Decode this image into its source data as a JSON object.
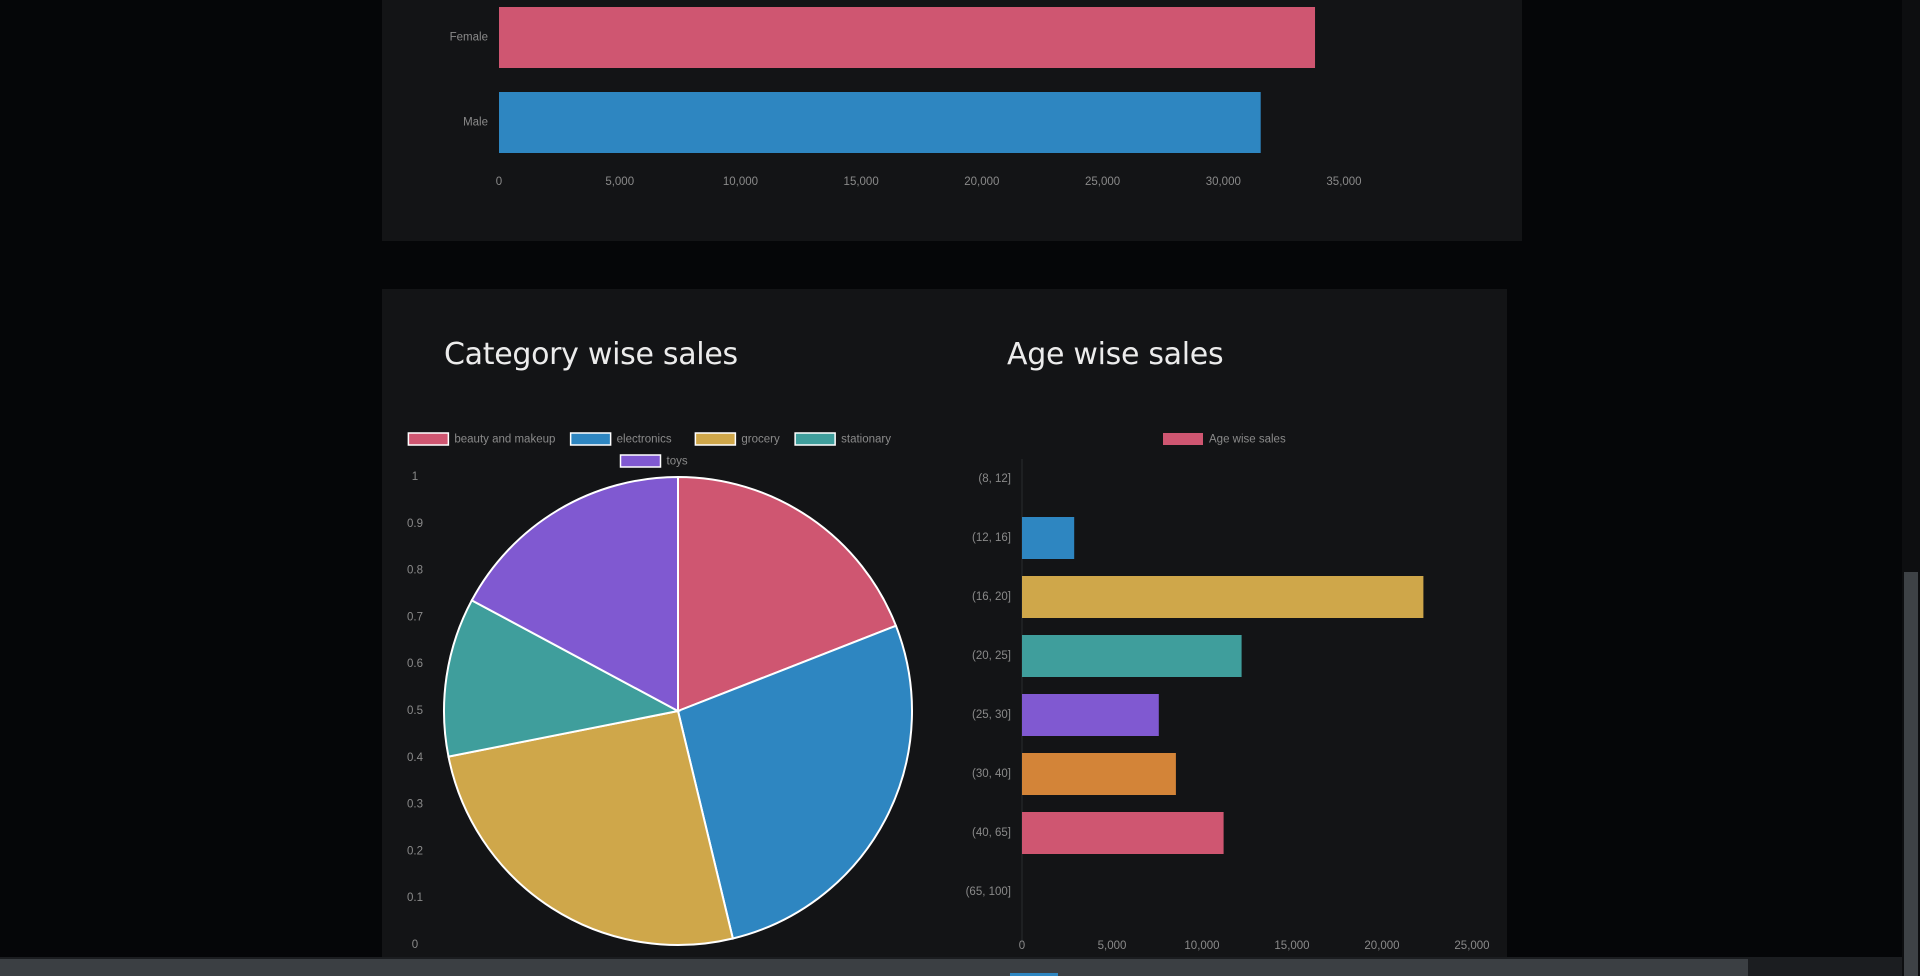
{
  "gender_chart": {
    "type": "bar",
    "orientation": "horizontal",
    "categories": [
      "Female",
      "Male"
    ],
    "values": [
      33800,
      31550
    ],
    "colors": [
      "#cf5671",
      "#2e86c1"
    ],
    "xlim": [
      0,
      35000
    ],
    "xticks": [
      0,
      5000,
      10000,
      15000,
      20000,
      25000,
      30000,
      35000
    ],
    "xtick_labels": [
      "0",
      "5,000",
      "10,000",
      "15,000",
      "20,000",
      "25,000",
      "30,000",
      "35,000"
    ],
    "legend": "none"
  },
  "category_chart": {
    "title": "Category wise sales",
    "type": "pie",
    "labels": [
      "beauty and makeup",
      "electronics",
      "grocery",
      "stationary",
      "toys"
    ],
    "values": [
      20.0,
      28.5,
      26.9,
      11.5,
      18.0
    ],
    "colors": [
      "#cf5671",
      "#2e86c1",
      "#cfa74a",
      "#3f9e9c",
      "#8059d1"
    ],
    "yticks": [
      "1",
      "0.9",
      "0.8",
      "0.7",
      "0.6",
      "0.5",
      "0.4",
      "0.3",
      "0.2",
      "0.1",
      "0"
    ],
    "legend": "top"
  },
  "age_chart": {
    "title": "Age wise sales",
    "type": "bar",
    "orientation": "horizontal",
    "legend_label": "Age wise sales",
    "legend_color": "#cf5671",
    "categories": [
      "(8, 12]",
      "(12, 16]",
      "(16, 20]",
      "(20, 25]",
      "(25, 30]",
      "(30, 40]",
      "(40, 65]",
      "(65, 100]"
    ],
    "values": [
      0,
      2900,
      22300,
      12200,
      7600,
      8550,
      11200,
      0
    ],
    "colors": [
      "#cf5671",
      "#2e86c1",
      "#cfa74a",
      "#3f9e9c",
      "#8059d1",
      "#d38438",
      "#cf5671",
      "#2e86c1"
    ],
    "xlim": [
      0,
      25000
    ],
    "xticks": [
      0,
      5000,
      10000,
      15000,
      20000,
      25000
    ],
    "xtick_labels": [
      "0",
      "5,000",
      "10,000",
      "15,000",
      "20,000",
      "25,000"
    ],
    "legend": "top"
  },
  "colors": {
    "page_bg": "#050608",
    "panel_bg": "#131416",
    "tick_text": "#8a8a8a",
    "title_text": "#ececec"
  }
}
